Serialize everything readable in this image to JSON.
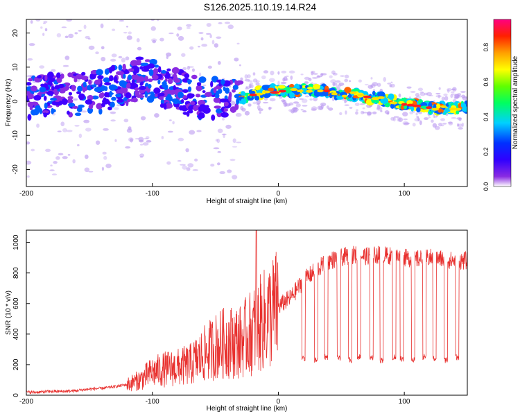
{
  "title": "S126.2025.110.19.14.R24",
  "chart_data": [
    {
      "type": "heatmap",
      "title": "S126.2025.110.19.14.R24",
      "xlabel": "Height of straight line (km)",
      "ylabel": "Frequency (Hz)",
      "xlim": [
        -200,
        150
      ],
      "ylim": [
        -25,
        24
      ],
      "x_ticks": [
        -200,
        -100,
        0,
        100
      ],
      "y_ticks": [
        -20,
        -10,
        0,
        10,
        20
      ],
      "colorbar": {
        "label": "Normalized spectral amplitude",
        "range": [
          0.0,
          0.96
        ],
        "ticks": [
          0.0,
          0.2,
          0.4,
          0.6,
          0.8
        ],
        "colormap": [
          "#ffffff",
          "#6a00ff",
          "#0000ff",
          "#00c8ff",
          "#00ff00",
          "#ffff00",
          "#ff8000",
          "#ff0000",
          "#ff0080"
        ]
      },
      "ridge": {
        "x": [
          -200,
          -180,
          -160,
          -140,
          -120,
          -110,
          -100,
          -90,
          -80,
          -70,
          -60,
          -50,
          -40,
          -30,
          -20,
          -10,
          0,
          10,
          20,
          30,
          40,
          50,
          60,
          70,
          80,
          90,
          100,
          110,
          120,
          130,
          140,
          150
        ],
        "y": [
          1,
          2,
          2,
          3,
          5,
          7,
          6,
          4,
          3,
          2,
          1,
          1,
          0,
          1,
          2,
          3,
          3,
          3,
          3,
          3,
          3,
          2,
          2,
          1,
          1,
          0,
          -1,
          -1,
          -2,
          -2,
          -2,
          -2
        ]
      },
      "grid": false
    },
    {
      "type": "line",
      "xlabel": "Height of straight line (km)",
      "ylabel": "SNR (10 * v/v)",
      "xlim": [
        -200,
        150
      ],
      "ylim": [
        0,
        1080
      ],
      "x_ticks": [
        -200,
        -100,
        0,
        100
      ],
      "y_ticks": [
        0,
        200,
        400,
        600,
        800,
        1000
      ],
      "line_color": "#e8302e",
      "series": [
        {
          "x": [
            -200,
            -190,
            -180,
            -170,
            -160,
            -150,
            -140,
            -130,
            -120,
            -110,
            -100,
            -90,
            -80,
            -70,
            -60,
            -50,
            -40,
            -30,
            -20,
            -10,
            0,
            10,
            20,
            30,
            40,
            50,
            60,
            70,
            80,
            90,
            100,
            110,
            120,
            130,
            140,
            150
          ],
          "values": [
            20,
            20,
            25,
            25,
            30,
            40,
            45,
            55,
            70,
            100,
            150,
            170,
            180,
            200,
            260,
            320,
            350,
            350,
            420,
            500,
            580,
            640,
            750,
            820,
            880,
            900,
            920,
            910,
            920,
            910,
            900,
            890,
            900,
            890,
            880,
            880
          ]
        }
      ],
      "dropouts": {
        "x": [
          20,
          30,
          38,
          48,
          57,
          64,
          74,
          82,
          92,
          98,
          107,
          116,
          124,
          133,
          142
        ],
        "values": [
          240,
          230,
          250,
          240,
          230,
          250,
          240,
          230,
          250,
          240,
          230,
          250,
          240,
          230,
          250
        ]
      },
      "grid": false
    }
  ]
}
